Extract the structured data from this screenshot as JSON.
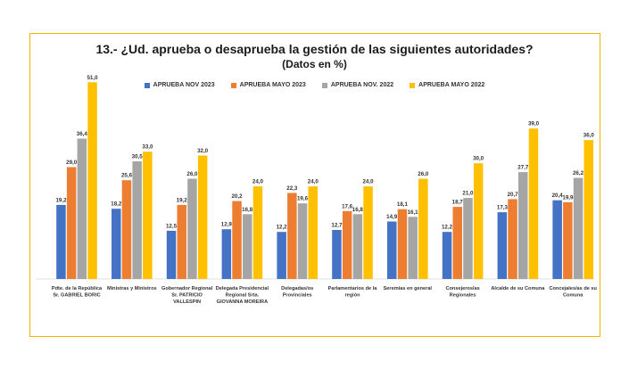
{
  "colors": {
    "frame": "#f0b400",
    "series": [
      "#4472c4",
      "#ed7d31",
      "#a5a5a5",
      "#ffc000"
    ]
  },
  "chart_data": {
    "type": "bar",
    "title": "13.- ¿Ud. aprueba o desaprueba la gestión de las siguientes autoridades?",
    "subtitle": "(Datos en %)",
    "legend_position": "top",
    "grid": false,
    "ylim": [
      0,
      55
    ],
    "categories": [
      [
        "Pdte. de la República",
        "Sr. GABRIEL BORIC"
      ],
      [
        "Ministras y Ministros"
      ],
      [
        "Gobernador Regional",
        "Sr. PATRICIO",
        "VALLESPIN"
      ],
      [
        "Delegada Presidencial",
        "Regional Srta.",
        "GIOVANNA MOREIRA"
      ],
      [
        "Delegadas/os",
        "Provinciales"
      ],
      [
        "Parlamentarios de la",
        "región"
      ],
      [
        "Seremias en general"
      ],
      [
        "Consejeros/as",
        "Regionales"
      ],
      [
        "Alcalde de su Comuna"
      ],
      [
        "Concejales/as de su",
        "Comuna"
      ]
    ],
    "series": [
      {
        "name": "APRUEBA NOV 2023",
        "values": [
          19.2,
          18.2,
          12.5,
          12.9,
          12.2,
          12.7,
          14.9,
          12.2,
          17.3,
          20.4
        ],
        "labels": [
          "19,2",
          "18,2",
          "12,5",
          "12,9",
          "12,2",
          "12,7",
          "14,9",
          "12,2",
          "17,3",
          "20,4"
        ]
      },
      {
        "name": "APRUEBA MAYO 2023",
        "values": [
          29.0,
          25.6,
          19.2,
          20.2,
          22.3,
          17.6,
          18.1,
          18.7,
          20.7,
          19.9
        ],
        "labels": [
          "29,0",
          "25,6",
          "19,2",
          "20,2",
          "22,3",
          "17,6",
          "18,1",
          "18,7",
          "20,7",
          "19,9"
        ]
      },
      {
        "name": "APRUEBA NOV. 2022",
        "values": [
          36.4,
          30.5,
          26.0,
          16.8,
          19.6,
          16.8,
          16.1,
          21.0,
          27.7,
          26.2
        ],
        "labels": [
          "36,4",
          "30,5",
          "26,0",
          "16,8",
          "19,6",
          "16,8",
          "16,1",
          "21,0",
          "27,7",
          "26,2"
        ]
      },
      {
        "name": "APRUEBA MAYO 2022",
        "values": [
          51.0,
          33.0,
          32.0,
          24.0,
          24.0,
          24.0,
          26.0,
          30.0,
          39.0,
          36.0
        ],
        "labels": [
          "51,0",
          "33,0",
          "32,0",
          "24,0",
          "24,0",
          "24,0",
          "26,0",
          "30,0",
          "39,0",
          "36,0"
        ]
      }
    ]
  }
}
